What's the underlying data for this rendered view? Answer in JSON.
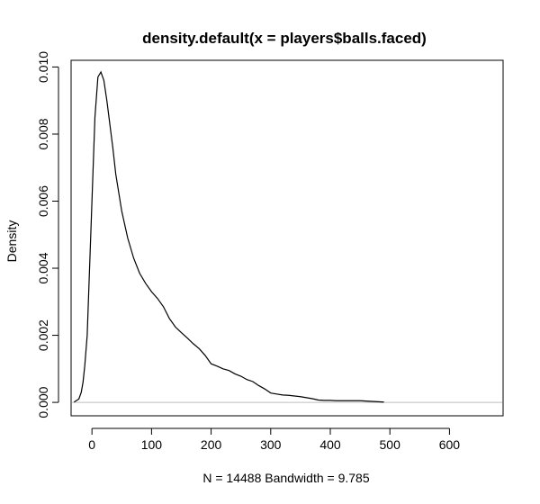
{
  "chart_data": {
    "type": "line",
    "title": "density.default(x = players$balls.faced)",
    "xlabel": "N = 14488   Bandwidth = 9.785",
    "ylabel": "Density",
    "xlim": [
      -35,
      690
    ],
    "ylim": [
      -0.0004,
      0.0102
    ],
    "x_ticks": [
      0,
      100,
      200,
      300,
      400,
      500,
      600
    ],
    "x_tick_labels": [
      "0",
      "100",
      "200",
      "300",
      "400",
      "500",
      "600"
    ],
    "y_ticks": [
      0.0,
      0.002,
      0.004,
      0.006,
      0.008,
      0.01
    ],
    "y_tick_labels": [
      "0.000",
      "0.002",
      "0.004",
      "0.006",
      "0.008",
      "0.010"
    ],
    "grid": false,
    "zero_line_color": "#bebebe",
    "series": [
      {
        "x": [
          -30,
          -22,
          -18,
          -15,
          -12,
          -8,
          -5,
          0,
          5,
          10,
          15,
          20,
          25,
          30,
          35,
          40,
          50,
          60,
          70,
          80,
          90,
          100,
          110,
          120,
          130,
          140,
          150,
          160,
          170,
          180,
          190,
          200,
          210,
          220,
          230,
          240,
          250,
          260,
          270,
          280,
          290,
          300,
          310,
          320,
          330,
          340,
          350,
          360,
          370,
          380,
          390,
          400,
          410,
          420,
          430,
          440,
          450,
          460,
          470,
          480,
          490
        ],
        "y": [
          1e-05,
          0.0001,
          0.0003,
          0.0006,
          0.0011,
          0.002,
          0.0035,
          0.006,
          0.0085,
          0.0097,
          0.00985,
          0.0096,
          0.009,
          0.0083,
          0.0076,
          0.0068,
          0.0057,
          0.0049,
          0.0043,
          0.00385,
          0.00355,
          0.0033,
          0.0031,
          0.00285,
          0.0025,
          0.00225,
          0.00208,
          0.00192,
          0.00175,
          0.0016,
          0.0014,
          0.00115,
          0.00108,
          0.001,
          0.00095,
          0.00085,
          0.00078,
          0.00068,
          0.00062,
          0.0005,
          0.0004,
          0.00028,
          0.00025,
          0.00022,
          0.00021,
          0.00019,
          0.00017,
          0.00014,
          0.00011,
          7e-05,
          6e-05,
          6e-05,
          5e-05,
          5e-05,
          5e-05,
          5e-05,
          5e-05,
          4e-05,
          3e-05,
          2e-05,
          1e-05
        ]
      }
    ]
  }
}
